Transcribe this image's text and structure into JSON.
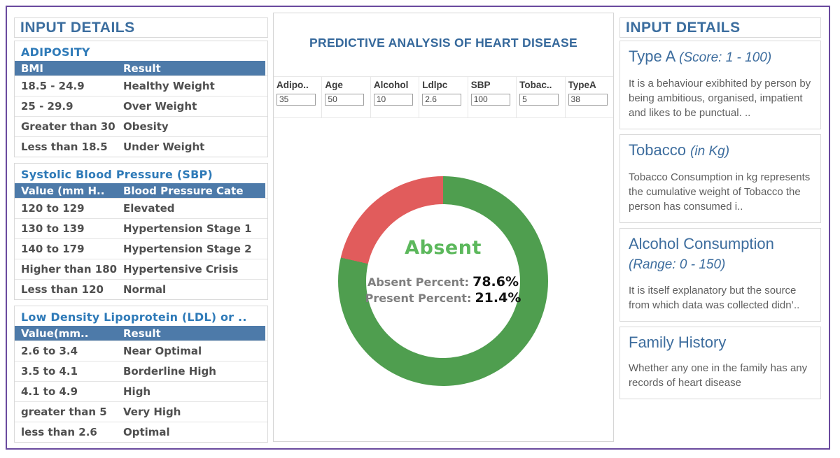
{
  "colors": {
    "frame_border": "#6a4a9e",
    "header_blue": "#3c6e9f",
    "table_bar_blue": "#4d7aa9",
    "section_title_blue": "#2e7ab8",
    "center_title_blue": "#35689b",
    "donut_green": "#4f9e4f",
    "donut_red": "#e15c5c",
    "absent_text_green": "#5cb85c"
  },
  "left_panel": {
    "header": "INPUT DETAILS",
    "tables": [
      {
        "title": "ADIPOSITY",
        "columns": [
          "BMI",
          "Result"
        ],
        "rows": [
          [
            "18.5 - 24.9",
            "Healthy Weight"
          ],
          [
            "25 - 29.9",
            "Over Weight"
          ],
          [
            "Greater than 30",
            "Obesity"
          ],
          [
            "Less than 18.5",
            "Under Weight"
          ]
        ]
      },
      {
        "title": "Systolic Blood Pressure (SBP)",
        "columns": [
          "Value (mm H..",
          "Blood Pressure Cate"
        ],
        "rows": [
          [
            "120 to 129",
            "Elevated"
          ],
          [
            "130 to 139",
            "Hypertension Stage 1"
          ],
          [
            "140 to 179",
            "Hypertension Stage 2"
          ],
          [
            "Higher than 180",
            "Hypertensive Crisis"
          ],
          [
            "Less than 120",
            "Normal"
          ]
        ]
      },
      {
        "title": "Low Density Lipoprotein (LDL) or ..",
        "columns": [
          "Value(mm..",
          "Result"
        ],
        "rows": [
          [
            "2.6 to 3.4",
            "Near Optimal"
          ],
          [
            "3.5 to 4.1",
            "Borderline High"
          ],
          [
            "4.1 to 4.9",
            "High"
          ],
          [
            "greater than 5",
            "Very High"
          ],
          [
            "less than 2.6",
            "Optimal"
          ]
        ]
      }
    ]
  },
  "center_panel": {
    "title": "PREDICTIVE ANALYSIS OF HEART DISEASE",
    "parameters": [
      {
        "label": "Adipo..",
        "value": "35"
      },
      {
        "label": "Age",
        "value": "50"
      },
      {
        "label": "Alcohol",
        "value": "10"
      },
      {
        "label": "Ldlpc",
        "value": "2.6"
      },
      {
        "label": "SBP",
        "value": "100"
      },
      {
        "label": "Tobac..",
        "value": "5"
      },
      {
        "label": "TypeA",
        "value": "38"
      }
    ]
  },
  "chart_data": {
    "type": "pie",
    "subtype": "donut",
    "title": "PREDICTIVE ANALYSIS OF HEART DISEASE",
    "slices": [
      {
        "label": "Absent",
        "value": 78.6,
        "color": "#4f9e4f"
      },
      {
        "label": "Present",
        "value": 21.4,
        "color": "#e15c5c"
      }
    ],
    "start_angle_deg": 0,
    "direction": "clockwise",
    "center_label": "Absent",
    "center_lines": [
      {
        "label": "Absent Percent:",
        "value": "78.6%"
      },
      {
        "label": "Present Percent:",
        "value": "21.4%"
      }
    ]
  },
  "right_panel": {
    "header": "INPUT DETAILS",
    "sections": [
      {
        "title": "Type A ",
        "note": "(Score: 1 - 100)",
        "body": "It is a behaviour exibhited by person by being ambitious, organised, impatient and likes to be punctual. .."
      },
      {
        "title": "Tobacco ",
        "note": "(in Kg)",
        "body": "Tobacco Consumption in kg represents the cumulative weight of Tobacco the person has consumed i.."
      },
      {
        "title": "Alcohol Consumption ",
        "note": "(Range: 0 - 150)",
        "body": "It is itself explanatory but the source from which data was collected didn’.."
      },
      {
        "title": "Family History",
        "note": "",
        "body": "Whether any one in the family has any records of heart disease"
      }
    ]
  }
}
